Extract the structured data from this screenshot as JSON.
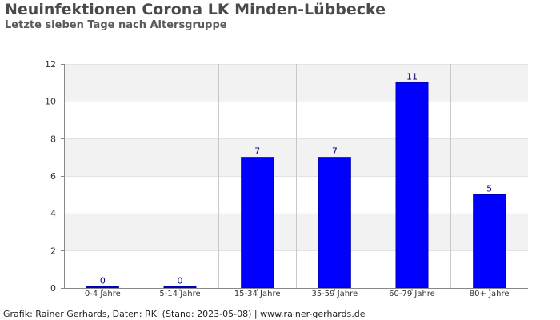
{
  "title": "Neuinfektionen Corona LK Minden-Lübbecke",
  "subtitle": "Letzte sieben Tage nach Altersgruppe",
  "footer": "Grafik: Rainer Gerhards, Daten: RKI (Stand: 2023-05-08) | www.rainer-gerhards.de",
  "colors": {
    "bar": "#0000ff",
    "bar_stroke": "#0000b0",
    "value_label": "#00007a",
    "band": "#f2f2f2",
    "grid": "#c8c8c8",
    "axis": "#888888",
    "text": "#333333"
  },
  "chart_data": {
    "type": "bar",
    "title": "Neuinfektionen Corona LK Minden-Lübbecke",
    "subtitle": "Letzte sieben Tage nach Altersgruppe",
    "xlabel": "",
    "ylabel": "",
    "categories": [
      "0-4 Jahre",
      "5-14 Jahre",
      "15-34 Jahre",
      "35-59 Jahre",
      "60-79 Jahre",
      "80+ Jahre"
    ],
    "values": [
      0,
      0,
      7,
      7,
      11,
      5
    ],
    "data_labels": [
      "0",
      "0",
      "7",
      "7",
      "11",
      "5"
    ],
    "ylim": [
      0,
      12
    ],
    "yticks": [
      0,
      2,
      4,
      6,
      8,
      10,
      12
    ],
    "grid": true,
    "legend": "none"
  }
}
